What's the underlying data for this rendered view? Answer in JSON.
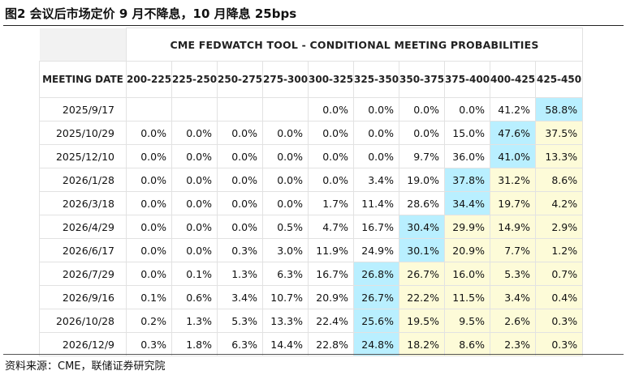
{
  "figure": {
    "title": "图2  会议后市场定价 9 月不降息，10 月降息 25bps",
    "source": "资料来源：CME，联储证券研究院"
  },
  "chart_data": {
    "type": "table",
    "title": "CME FEDWATCH TOOL - CONDITIONAL MEETING PROBABILITIES",
    "row_header_label": "MEETING DATE",
    "columns": [
      "200-225",
      "225-250",
      "250-275",
      "275-300",
      "300-325",
      "325-350",
      "350-375",
      "375-400",
      "400-425",
      "425-450"
    ],
    "rows": [
      {
        "date": "2025/9/17",
        "values": [
          "",
          "",
          "",
          "",
          "0.0%",
          "0.0%",
          "0.0%",
          "0.0%",
          "41.2%",
          "58.8%"
        ]
      },
      {
        "date": "2025/10/29",
        "values": [
          "0.0%",
          "0.0%",
          "0.0%",
          "0.0%",
          "0.0%",
          "0.0%",
          "0.0%",
          "15.0%",
          "47.6%",
          "37.5%"
        ]
      },
      {
        "date": "2025/12/10",
        "values": [
          "0.0%",
          "0.0%",
          "0.0%",
          "0.0%",
          "0.0%",
          "0.0%",
          "9.7%",
          "36.0%",
          "41.0%",
          "13.3%"
        ]
      },
      {
        "date": "2026/1/28",
        "values": [
          "0.0%",
          "0.0%",
          "0.0%",
          "0.0%",
          "0.0%",
          "3.4%",
          "19.0%",
          "37.8%",
          "31.2%",
          "8.6%"
        ]
      },
      {
        "date": "2026/3/18",
        "values": [
          "0.0%",
          "0.0%",
          "0.0%",
          "0.0%",
          "1.7%",
          "11.4%",
          "28.6%",
          "34.4%",
          "19.7%",
          "4.2%"
        ]
      },
      {
        "date": "2026/4/29",
        "values": [
          "0.0%",
          "0.0%",
          "0.0%",
          "0.5%",
          "4.7%",
          "16.7%",
          "30.4%",
          "29.9%",
          "14.9%",
          "2.9%"
        ]
      },
      {
        "date": "2026/6/17",
        "values": [
          "0.0%",
          "0.0%",
          "0.3%",
          "3.0%",
          "11.9%",
          "24.9%",
          "30.1%",
          "20.9%",
          "7.7%",
          "1.2%"
        ]
      },
      {
        "date": "2026/7/29",
        "values": [
          "0.0%",
          "0.1%",
          "1.3%",
          "6.3%",
          "16.7%",
          "26.8%",
          "26.7%",
          "16.0%",
          "5.3%",
          "0.7%"
        ]
      },
      {
        "date": "2026/9/16",
        "values": [
          "0.1%",
          "0.6%",
          "3.4%",
          "10.7%",
          "20.9%",
          "26.7%",
          "22.2%",
          "11.5%",
          "3.4%",
          "0.4%"
        ]
      },
      {
        "date": "2026/10/28",
        "values": [
          "0.2%",
          "1.3%",
          "5.3%",
          "13.3%",
          "22.4%",
          "25.6%",
          "19.5%",
          "9.5%",
          "2.6%",
          "0.3%"
        ]
      },
      {
        "date": "2026/12/9",
        "values": [
          "0.3%",
          "1.8%",
          "6.3%",
          "14.4%",
          "22.8%",
          "24.8%",
          "18.2%",
          "8.6%",
          "2.3%",
          "0.3%"
        ]
      }
    ],
    "colors": {
      "max_highlight": "#b9efff",
      "above_max": "#fdfbd8"
    }
  }
}
